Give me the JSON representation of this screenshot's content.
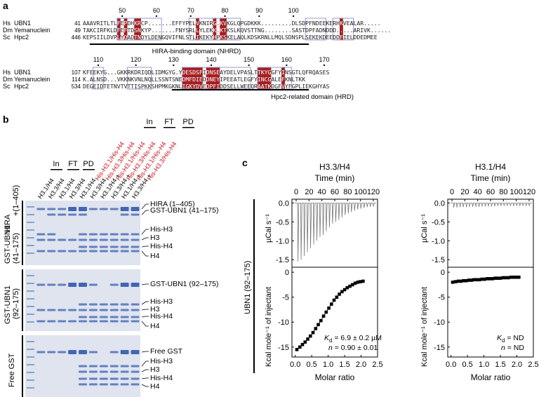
{
  "panel_a": {
    "label": "a",
    "block1": {
      "ticks": [
        "50",
        "60",
        "70",
        "80",
        "90",
        "100"
      ],
      "rows": [
        {
          "species": "Hs",
          "protein": "UBN1",
          "start": "41",
          "seq": "AAAVRITLTLFEPDHKRCP.......EFFYPELVKNIRG.KVKGLQPGDKKK.........DLSDPFNDEEKERHKVEALAR....."
        },
        {
          "species": "Dm",
          "protein": "Yemanuclein",
          "start": "49",
          "seq": "TAKCIRFKLDFEFTDSNKYP.......FNYSRLLYLEKK.KTKSLKQVSTTNG........SASTDPFADNDDD.....ARIVK......"
        },
        {
          "species": "Sc",
          "protein": "Hpc2",
          "start": "446",
          "seq": "KEPSIILDVPLYQADTNDYLDENGQVIFNLSTLIKEKYHPKSKELAQLKDSKRNLLMQLSDNSPLSEKEKDEEDDFIELDDEDMEE"
        }
      ],
      "domain": "HIRA-binding domain (NHRD)"
    },
    "block2": {
      "ticks": [
        "110",
        "120",
        "130",
        "140",
        "150",
        "160",
        "170"
      ],
      "rows": [
        {
          "species": "Hs",
          "protein": "UBN1",
          "start": "107",
          "seq": "KFEEKYG...GKKRKDRIQDLIDMGYG.YDESDSFIDNSEAYDELVPASLTTKYGGFYINSGTLQFRQASES"
        },
        {
          "species": "Dm",
          "protein": "Yemanuclein",
          "start": "114",
          "seq": "K.ALNSD...VKKNKVNLNQLLSSNTSNEDMFDIEDDNEYIPEEATLEGFYINCGALEFKNLTKK"
        },
        {
          "species": "Sc",
          "protein": "Hpc2",
          "start": "534",
          "seq": "DEGEIDTETNVTVTTISPKKSHPMKGKNLIGKYDVEDPFIDDSELLWEEQRAATKDGFVYFGPLIEKGHYAS"
        }
      ],
      "domain": "Hpc2-related domain (HRD)"
    }
  },
  "panel_b": {
    "label": "b",
    "group_labels": [
      "In",
      "FT",
      "PD"
    ],
    "top_group_labels": [
      "In",
      "FT",
      "PD"
    ],
    "lane_labels_black": [
      "H3.1/H4",
      "H3.3/H4",
      "H3.1/H4",
      "H3.3/H4",
      "H3.1/H4",
      "H3.3/H4",
      "H3.1/H4 +",
      "H3.3/H4 +",
      "H3.1/H4 +",
      "H3.3/H4 +"
    ],
    "lane_labels_red": [
      "His-H3.1/His-H4",
      "His-H3.3/His-H4",
      "His-H3.1/His-H4",
      "His-H3.3/His-H4",
      "His-H3.1/His-H4",
      "His-H3.3/His-H4"
    ],
    "gels": [
      {
        "side_label_1": "HIRA",
        "side_label_2": "+(1–405)",
        "side_label_3": "GST-UBN1",
        "side_label_4": "(41–175)",
        "bands": [
          "HIRA (1–405)",
          "GST-UBN1 (41–175)",
          "His-H3",
          "H3",
          "His-H4",
          "H4"
        ]
      },
      {
        "side_label_1": "GST-UBN1",
        "side_label_2": "(92–175)",
        "bands": [
          "GST-UBN1 (92–175)",
          "His-H3",
          "H3",
          "His-H4",
          "H4"
        ]
      },
      {
        "side_label_1": "Free GST",
        "bands": [
          "Free GST",
          "His-H3",
          "H3",
          "His-H4",
          "H4"
        ]
      }
    ]
  },
  "panel_c": {
    "label": "c",
    "side_label": "UBN1 (92–175)",
    "chart_data": [
      {
        "type": "line",
        "title": "H3.3/H4",
        "top_axis_label": "Time (min)",
        "top_ticks": [
          "0",
          "20",
          "40",
          "60",
          "80",
          "100",
          "120"
        ],
        "top_ylabel": "µCal s⁻¹",
        "top_yticks": [
          "0.0",
          "-0.5",
          "-1.0",
          "-1.5"
        ],
        "top_ylim": [
          -1.7,
          0.1
        ],
        "injection_minima": [
          -1.55,
          -1.5,
          -1.4,
          -1.3,
          -1.2,
          -1.1,
          -1.0,
          -0.9,
          -0.85,
          -0.75,
          -0.65,
          -0.55,
          -0.5,
          -0.45,
          -0.38,
          -0.32,
          -0.28,
          -0.24,
          -0.2,
          -0.17,
          -0.15,
          -0.13,
          -0.11,
          -0.1,
          -0.09
        ],
        "xlabel": "Molar ratio",
        "xticks": [
          "0.0",
          "0.5",
          "1.0",
          "1.5",
          "2.0",
          "2.5"
        ],
        "xlim": [
          -0.1,
          2.5
        ],
        "ylabel": "Kcal mole⁻¹ of injectant",
        "yticks": [
          "0",
          "-5",
          "-10",
          "-15"
        ],
        "ylim": [
          -17,
          1
        ],
        "x": [
          0.05,
          0.14,
          0.22,
          0.3,
          0.38,
          0.46,
          0.54,
          0.62,
          0.7,
          0.78,
          0.86,
          0.94,
          1.02,
          1.1,
          1.18,
          1.26,
          1.34,
          1.42,
          1.5,
          1.58,
          1.66,
          1.74,
          1.82,
          1.9,
          1.98,
          2.06
        ],
        "y": [
          -15.5,
          -15.0,
          -14.5,
          -14.0,
          -13.4,
          -12.8,
          -12.1,
          -11.3,
          -10.5,
          -9.7,
          -8.8,
          -8.0,
          -7.2,
          -6.4,
          -5.6,
          -5.0,
          -4.4,
          -3.9,
          -3.5,
          -3.1,
          -2.8,
          -2.5,
          -2.2,
          -2.0,
          -1.9,
          -1.8
        ],
        "kd_label": "K",
        "kd_sub": "d",
        "kd_value": " = 6.9 ± 0.2 µM",
        "n_label": "n",
        "n_value": " = 0.90 ± 0.01"
      },
      {
        "type": "line",
        "title": "H3.1/H4",
        "top_axis_label": "Time (min)",
        "top_ticks": [
          "0",
          "20",
          "40",
          "60",
          "80",
          "100",
          "120"
        ],
        "top_ylabel": "µCal s⁻¹",
        "top_yticks": [
          "0.0",
          "-0.5",
          "-1.0",
          "-1.5"
        ],
        "top_ylim": [
          -1.7,
          0.1
        ],
        "injection_minima": [
          -0.12,
          -0.12,
          -0.11,
          -0.11,
          -0.11,
          -0.1,
          -0.1,
          -0.1,
          -0.1,
          -0.09,
          -0.09,
          -0.09,
          -0.09,
          -0.09,
          -0.08,
          -0.08,
          -0.08,
          -0.08,
          -0.08,
          -0.08,
          -0.08,
          -0.08,
          -0.08,
          -0.08,
          -0.08
        ],
        "xlabel": "Molar ratio",
        "xticks": [
          "0.0",
          "0.5",
          "1.0",
          "1.5",
          "2.0",
          "2.5"
        ],
        "xlim": [
          -0.1,
          2.5
        ],
        "ylabel": "Kcal mole⁻¹ of injectant",
        "yticks": [
          "0",
          "-5",
          "-10",
          "-15"
        ],
        "ylim": [
          -17,
          1
        ],
        "x": [
          0.05,
          0.14,
          0.22,
          0.3,
          0.38,
          0.46,
          0.54,
          0.62,
          0.7,
          0.78,
          0.86,
          0.94,
          1.02,
          1.1,
          1.18,
          1.26,
          1.34,
          1.42,
          1.5,
          1.58,
          1.66,
          1.74,
          1.82,
          1.9,
          1.98,
          2.06
        ],
        "y": [
          -2.0,
          -1.9,
          -1.8,
          -1.8,
          -1.7,
          -1.7,
          -1.6,
          -1.6,
          -1.5,
          -1.5,
          -1.5,
          -1.4,
          -1.4,
          -1.3,
          -1.3,
          -1.3,
          -1.2,
          -1.2,
          -1.2,
          -1.1,
          -1.1,
          -1.1,
          -1.0,
          -1.0,
          -1.0,
          -1.0
        ],
        "kd_label": "K",
        "kd_sub": "d",
        "kd_value": " = ND",
        "n_label": "n",
        "n_value": " = ND"
      }
    ]
  },
  "colors": {
    "red_box": "#a41e22",
    "box_outline": "#9a9ac8",
    "gel_bg": "#dfe4ef",
    "band": "#3a5fb0",
    "red_text": "#c8141e"
  }
}
